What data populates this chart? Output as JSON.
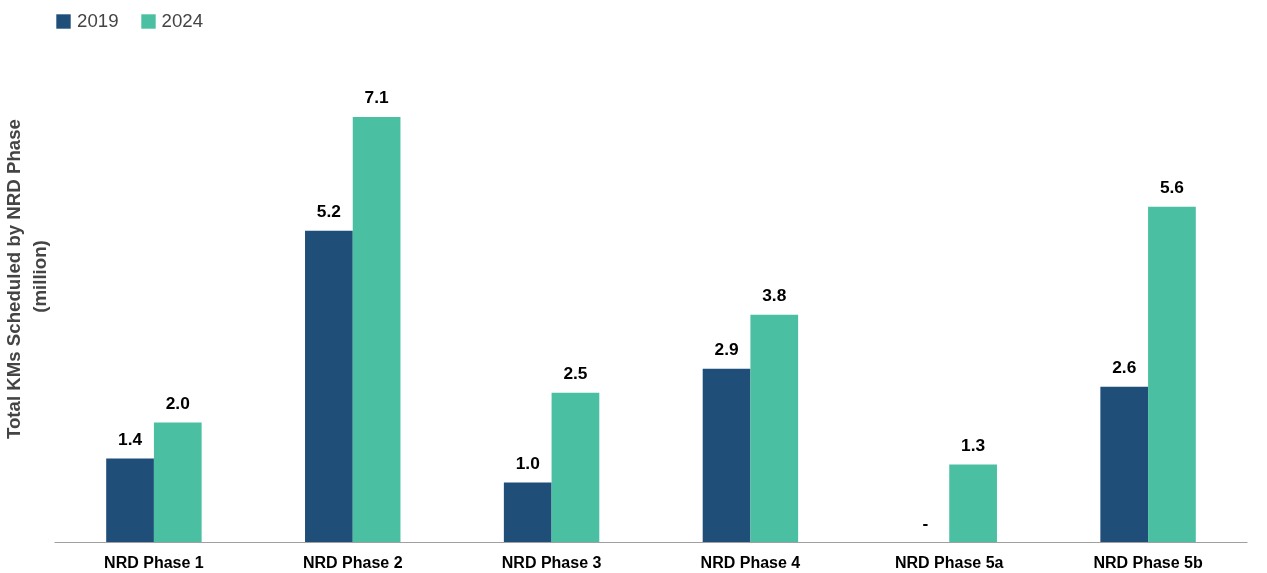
{
  "chart_data": {
    "type": "bar",
    "ylabel": "Total  KMs Scheduled by NRD Phase\n(million)",
    "categories": [
      "NRD Phase 1",
      "NRD Phase 2",
      "NRD Phase 3",
      "NRD Phase 4",
      "NRD Phase 5a",
      "NRD Phase 5b"
    ],
    "series": [
      {
        "name": "2019",
        "color": "#1f4e79",
        "values": [
          1.4,
          5.2,
          1.0,
          2.9,
          null,
          2.6
        ],
        "value_labels": [
          "1.4",
          "5.2",
          "1.0",
          "2.9",
          "-",
          "2.6"
        ]
      },
      {
        "name": "2024",
        "color": "#4abfa2",
        "values": [
          2.0,
          7.1,
          2.5,
          3.8,
          1.3,
          5.6
        ],
        "value_labels": [
          "2.0",
          "7.1",
          "2.5",
          "3.8",
          "1.3",
          "5.6"
        ]
      }
    ],
    "legend": "top left",
    "grid": false,
    "tick_labels": "x"
  }
}
